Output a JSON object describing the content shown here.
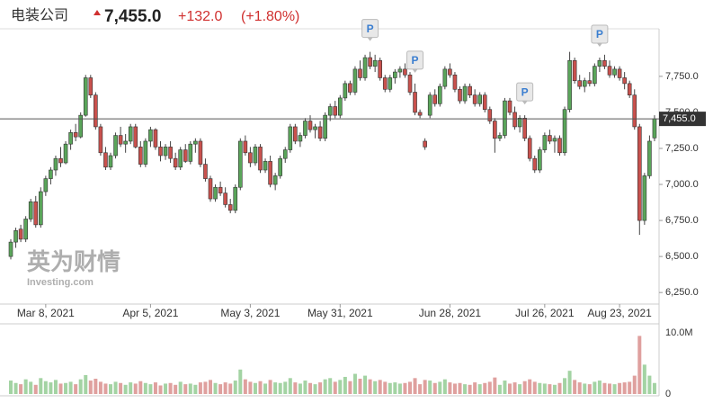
{
  "header": {
    "name": "电装公司",
    "price": "7,455.0",
    "change": "+132.0",
    "change_pct": "(+1.80%)"
  },
  "watermark": {
    "brand": "英为财情",
    "site": "Investing.com"
  },
  "chart_data": {
    "type": "candlestick",
    "ohlc": [
      [
        6500,
        6620,
        6480,
        6600
      ],
      [
        6600,
        6700,
        6560,
        6680
      ],
      [
        6690,
        6720,
        6600,
        6620
      ],
      [
        6620,
        6780,
        6600,
        6760
      ],
      [
        6760,
        6900,
        6740,
        6880
      ],
      [
        6880,
        6920,
        6700,
        6720
      ],
      [
        6720,
        6980,
        6700,
        6950
      ],
      [
        6950,
        7060,
        6920,
        7040
      ],
      [
        7040,
        7120,
        7000,
        7100
      ],
      [
        7100,
        7200,
        7060,
        7180
      ],
      [
        7180,
        7260,
        7120,
        7150
      ],
      [
        7150,
        7300,
        7140,
        7280
      ],
      [
        7280,
        7380,
        7240,
        7360
      ],
      [
        7360,
        7420,
        7300,
        7330
      ],
      [
        7330,
        7500,
        7320,
        7480
      ],
      [
        7480,
        7760,
        7470,
        7740
      ],
      [
        7740,
        7760,
        7600,
        7620
      ],
      [
        7620,
        7640,
        7380,
        7400
      ],
      [
        7400,
        7420,
        7200,
        7220
      ],
      [
        7220,
        7260,
        7100,
        7120
      ],
      [
        7120,
        7220,
        7100,
        7200
      ],
      [
        7200,
        7360,
        7180,
        7340
      ],
      [
        7340,
        7400,
        7260,
        7280
      ],
      [
        7280,
        7350,
        7220,
        7300
      ],
      [
        7300,
        7420,
        7280,
        7400
      ],
      [
        7400,
        7420,
        7250,
        7260
      ],
      [
        7260,
        7300,
        7120,
        7140
      ],
      [
        7140,
        7320,
        7120,
        7300
      ],
      [
        7300,
        7400,
        7260,
        7380
      ],
      [
        7380,
        7390,
        7240,
        7260
      ],
      [
        7260,
        7300,
        7160,
        7200
      ],
      [
        7200,
        7280,
        7170,
        7260
      ],
      [
        7260,
        7300,
        7150,
        7180
      ],
      [
        7180,
        7220,
        7100,
        7120
      ],
      [
        7120,
        7260,
        7100,
        7240
      ],
      [
        7240,
        7280,
        7150,
        7160
      ],
      [
        7160,
        7300,
        7140,
        7280
      ],
      [
        7280,
        7320,
        7220,
        7300
      ],
      [
        7300,
        7320,
        7120,
        7140
      ],
      [
        7140,
        7180,
        7020,
        7040
      ],
      [
        7040,
        7060,
        6880,
        6900
      ],
      [
        6900,
        7000,
        6880,
        6980
      ],
      [
        6980,
        7020,
        6920,
        6940
      ],
      [
        6940,
        6980,
        6840,
        6860
      ],
      [
        6860,
        6900,
        6800,
        6820
      ],
      [
        6820,
        7000,
        6800,
        6980
      ],
      [
        6980,
        7320,
        6960,
        7300
      ],
      [
        7300,
        7340,
        7200,
        7220
      ],
      [
        7220,
        7260,
        7120,
        7150
      ],
      [
        7150,
        7280,
        7130,
        7260
      ],
      [
        7260,
        7280,
        7080,
        7100
      ],
      [
        7100,
        7180,
        7080,
        7160
      ],
      [
        7160,
        7200,
        6980,
        7000
      ],
      [
        7000,
        7080,
        6960,
        7060
      ],
      [
        7060,
        7200,
        7040,
        7180
      ],
      [
        7180,
        7260,
        7150,
        7240
      ],
      [
        7240,
        7420,
        7220,
        7400
      ],
      [
        7400,
        7420,
        7280,
        7300
      ],
      [
        7300,
        7360,
        7260,
        7340
      ],
      [
        7340,
        7460,
        7320,
        7440
      ],
      [
        7440,
        7480,
        7360,
        7380
      ],
      [
        7380,
        7420,
        7320,
        7400
      ],
      [
        7400,
        7440,
        7300,
        7320
      ],
      [
        7320,
        7500,
        7300,
        7480
      ],
      [
        7480,
        7560,
        7440,
        7540
      ],
      [
        7540,
        7580,
        7460,
        7480
      ],
      [
        7480,
        7620,
        7460,
        7600
      ],
      [
        7600,
        7720,
        7580,
        7700
      ],
      [
        7700,
        7720,
        7620,
        7640
      ],
      [
        7640,
        7820,
        7620,
        7800
      ],
      [
        7800,
        7860,
        7720,
        7740
      ],
      [
        7740,
        7900,
        7720,
        7880
      ],
      [
        7880,
        7920,
        7800,
        7820
      ],
      [
        7820,
        7900,
        7780,
        7860
      ],
      [
        7860,
        7880,
        7720,
        7740
      ],
      [
        7740,
        7760,
        7640,
        7660
      ],
      [
        7660,
        7760,
        7640,
        7740
      ],
      [
        7740,
        7800,
        7700,
        7780
      ],
      [
        7780,
        7820,
        7740,
        7800
      ],
      [
        7800,
        7840,
        7740,
        7760
      ],
      [
        7760,
        7780,
        7620,
        7640
      ],
      [
        7640,
        7700,
        7480,
        7500
      ],
      [
        7500,
        7520,
        7460,
        7480
      ],
      [
        7300,
        7320,
        7240,
        7260
      ],
      [
        7480,
        7640,
        7460,
        7620
      ],
      [
        7620,
        7660,
        7540,
        7560
      ],
      [
        7560,
        7700,
        7540,
        7680
      ],
      [
        7680,
        7820,
        7660,
        7800
      ],
      [
        7800,
        7840,
        7740,
        7760
      ],
      [
        7760,
        7780,
        7640,
        7660
      ],
      [
        7660,
        7680,
        7560,
        7580
      ],
      [
        7580,
        7700,
        7560,
        7680
      ],
      [
        7680,
        7700,
        7600,
        7620
      ],
      [
        7620,
        7660,
        7540,
        7560
      ],
      [
        7560,
        7640,
        7540,
        7620
      ],
      [
        7620,
        7640,
        7500,
        7520
      ],
      [
        7520,
        7540,
        7420,
        7440
      ],
      [
        7440,
        7460,
        7220,
        7320
      ],
      [
        7320,
        7360,
        7300,
        7340
      ],
      [
        7340,
        7600,
        7320,
        7580
      ],
      [
        7580,
        7600,
        7480,
        7500
      ],
      [
        7500,
        7540,
        7380,
        7400
      ],
      [
        7400,
        7480,
        7360,
        7460
      ],
      [
        7460,
        7480,
        7300,
        7320
      ],
      [
        7320,
        7340,
        7160,
        7180
      ],
      [
        7180,
        7200,
        7080,
        7100
      ],
      [
        7100,
        7260,
        7080,
        7240
      ],
      [
        7240,
        7360,
        7220,
        7340
      ],
      [
        7340,
        7380,
        7280,
        7300
      ],
      [
        7300,
        7340,
        7220,
        7320
      ],
      [
        7320,
        7340,
        7200,
        7220
      ],
      [
        7220,
        7540,
        7200,
        7520
      ],
      [
        7520,
        7920,
        7500,
        7860
      ],
      [
        7860,
        7880,
        7700,
        7720
      ],
      [
        7720,
        7760,
        7660,
        7680
      ],
      [
        7680,
        7740,
        7640,
        7720
      ],
      [
        7720,
        7780,
        7680,
        7700
      ],
      [
        7700,
        7840,
        7680,
        7820
      ],
      [
        7820,
        7880,
        7780,
        7860
      ],
      [
        7860,
        7900,
        7800,
        7820
      ],
      [
        7820,
        7860,
        7740,
        7760
      ],
      [
        7760,
        7820,
        7740,
        7800
      ],
      [
        7800,
        7820,
        7720,
        7740
      ],
      [
        7740,
        7780,
        7660,
        7700
      ],
      [
        7700,
        7720,
        7600,
        7620
      ],
      [
        7620,
        7660,
        7380,
        7400
      ],
      [
        7400,
        7420,
        6650,
        6750
      ],
      [
        6750,
        7080,
        6720,
        7060
      ],
      [
        7060,
        7340,
        7040,
        7300
      ],
      [
        7323,
        7480,
        7300,
        7455
      ]
    ],
    "volume": [
      2.2,
      1.8,
      1.6,
      2.4,
      2.0,
      1.5,
      2.6,
      2.1,
      1.9,
      2.3,
      1.7,
      1.8,
      2.0,
      1.6,
      2.4,
      3.1,
      2.2,
      2.5,
      2.0,
      1.7,
      1.6,
      2.0,
      1.8,
      1.5,
      1.9,
      1.7,
      2.1,
      1.8,
      1.6,
      1.9,
      1.4,
      1.7,
      1.8,
      1.5,
      2.0,
      1.6,
      1.7,
      1.5,
      1.9,
      2.0,
      2.3,
      1.8,
      1.6,
      1.9,
      1.7,
      2.2,
      4.0,
      2.4,
      2.0,
      1.8,
      2.1,
      1.7,
      2.3,
      1.9,
      1.8,
      2.0,
      2.6,
      1.9,
      1.7,
      2.2,
      1.8,
      1.6,
      1.9,
      2.4,
      2.6,
      2.0,
      2.3,
      2.8,
      2.1,
      3.3,
      2.5,
      3.0,
      2.4,
      2.1,
      2.3,
      2.0,
      1.8,
      1.9,
      1.7,
      1.8,
      2.0,
      2.6,
      1.6,
      2.3,
      2.2,
      1.8,
      2.0,
      2.4,
      1.9,
      1.7,
      1.8,
      1.6,
      1.5,
      1.9,
      1.6,
      1.8,
      2.0,
      2.7,
      1.5,
      2.2,
      1.7,
      1.9,
      1.6,
      2.1,
      2.4,
      2.0,
      1.8,
      1.7,
      1.6,
      1.5,
      1.8,
      2.6,
      3.8,
      2.3,
      1.9,
      1.7,
      1.6,
      2.0,
      2.2,
      1.8,
      1.7,
      1.6,
      1.8,
      1.9,
      2.0,
      3.0,
      9.5,
      4.8,
      3.0,
      1.8
    ],
    "xticks": [
      {
        "value": 7,
        "label": "Mar 8, 2021"
      },
      {
        "value": 28,
        "label": "Apr 5, 2021"
      },
      {
        "value": 48,
        "label": "May 3, 2021"
      },
      {
        "value": 66,
        "label": "May 31, 2021"
      },
      {
        "value": 88,
        "label": "Jun 28, 2021"
      },
      {
        "value": 107,
        "label": "Jul 26, 2021"
      },
      {
        "value": 122,
        "label": "Aug 23, 2021"
      }
    ],
    "ylim": [
      6170,
      8080
    ],
    "yticks": [
      {
        "value": 6250,
        "label": "6,250.0"
      },
      {
        "value": 6500,
        "label": "6,500.0"
      },
      {
        "value": 6750,
        "label": "6,750.0"
      },
      {
        "value": 7000,
        "label": "7,000.0"
      },
      {
        "value": 7250,
        "label": "7,250.0"
      },
      {
        "value": 7500,
        "label": "7,500.0"
      },
      {
        "value": 7750,
        "label": "7,750.0"
      }
    ],
    "last": {
      "value": 7455,
      "label": "7,455.0"
    },
    "vlim": [
      0,
      10
    ],
    "vticks": [
      0,
      {
        "value": 10,
        "label": "10.0M"
      }
    ],
    "events": [
      {
        "x": 72,
        "label": "P"
      },
      {
        "x": 81,
        "label": "P"
      },
      {
        "x": 103,
        "label": "P"
      },
      {
        "x": 118,
        "label": "P"
      }
    ],
    "up_color": "#5aa55a",
    "down_color": "#c9514d",
    "up_volume_color": "#a3d3a3",
    "down_volume_color": "#dfa09e"
  }
}
